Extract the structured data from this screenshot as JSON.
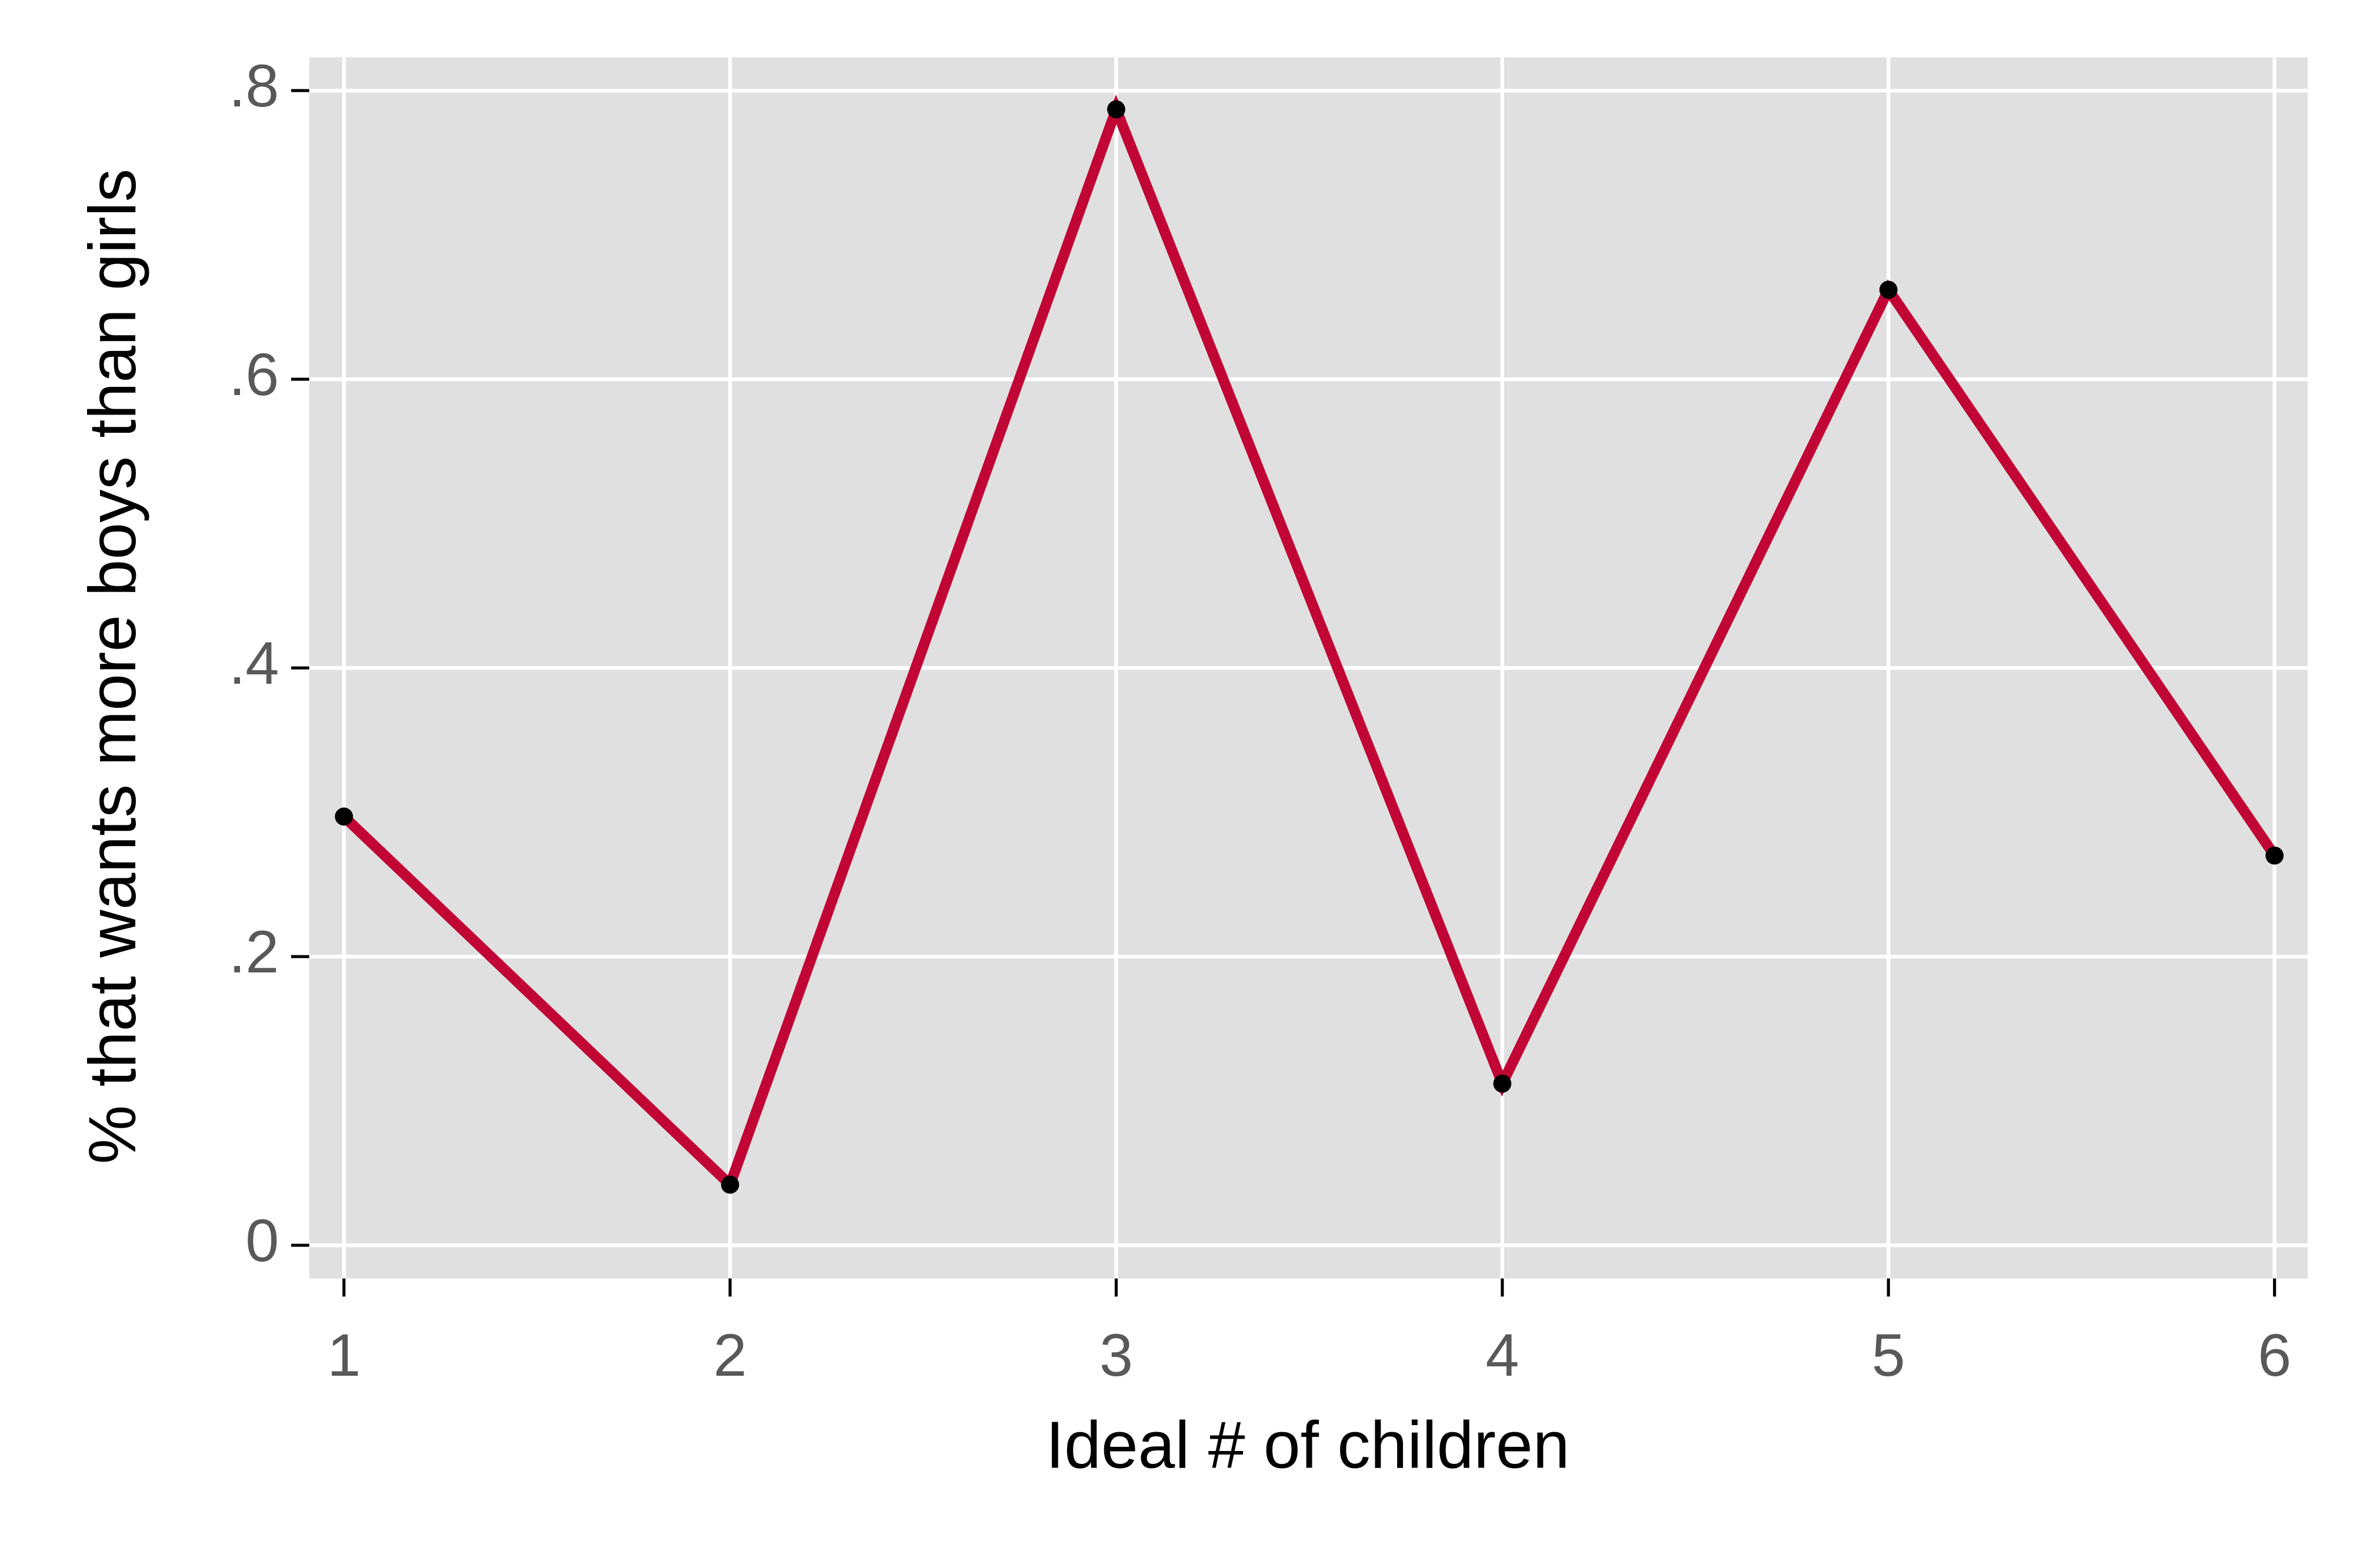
{
  "chart_data": {
    "type": "line",
    "x_label": "Ideal # of children",
    "y_label": "% that wants more boys than girls",
    "x": [
      1,
      2,
      3,
      4,
      5,
      6
    ],
    "values": [
      0.297,
      0.042,
      0.787,
      0.112,
      0.662,
      0.27
    ],
    "color": "#c10534",
    "marker_color": "#000000",
    "background": "#e0e0e0",
    "grid": true,
    "xlim": [
      0.91,
      6.086
    ],
    "ylim": [
      -0.023,
      0.823
    ],
    "xticks": [
      1,
      2,
      3,
      4,
      5,
      6
    ],
    "yticks": [
      0,
      {
        "value": 0.2,
        "label": ".2"
      },
      {
        "value": 0.4,
        "label": ".4"
      },
      {
        "value": 0.6,
        "label": ".6"
      },
      {
        "value": 0.8,
        "label": ".8"
      }
    ]
  }
}
